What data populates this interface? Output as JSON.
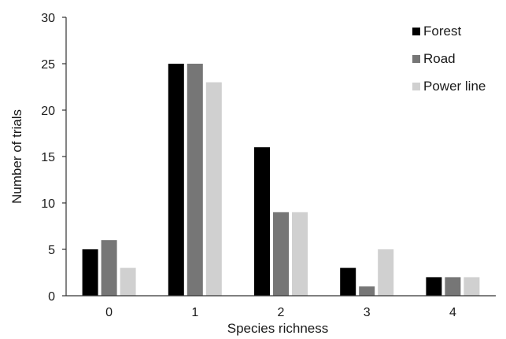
{
  "chart_data": {
    "type": "bar",
    "categories": [
      "0",
      "1",
      "2",
      "3",
      "4"
    ],
    "series": [
      {
        "name": "Forest",
        "values": [
          5,
          25,
          16,
          3,
          2
        ],
        "color": "#000000"
      },
      {
        "name": "Road",
        "values": [
          6,
          25,
          9,
          1,
          2
        ],
        "color": "#767676"
      },
      {
        "name": "Power line",
        "values": [
          3,
          23,
          9,
          5,
          2
        ],
        "color": "#d0d0d0"
      }
    ],
    "title": "",
    "xlabel": "Species richness",
    "ylabel": "Number of trials",
    "ylim": [
      0,
      30
    ],
    "yticks": [
      0,
      5,
      10,
      15,
      20,
      25,
      30
    ],
    "grid": false,
    "legend_position": "top-right"
  }
}
